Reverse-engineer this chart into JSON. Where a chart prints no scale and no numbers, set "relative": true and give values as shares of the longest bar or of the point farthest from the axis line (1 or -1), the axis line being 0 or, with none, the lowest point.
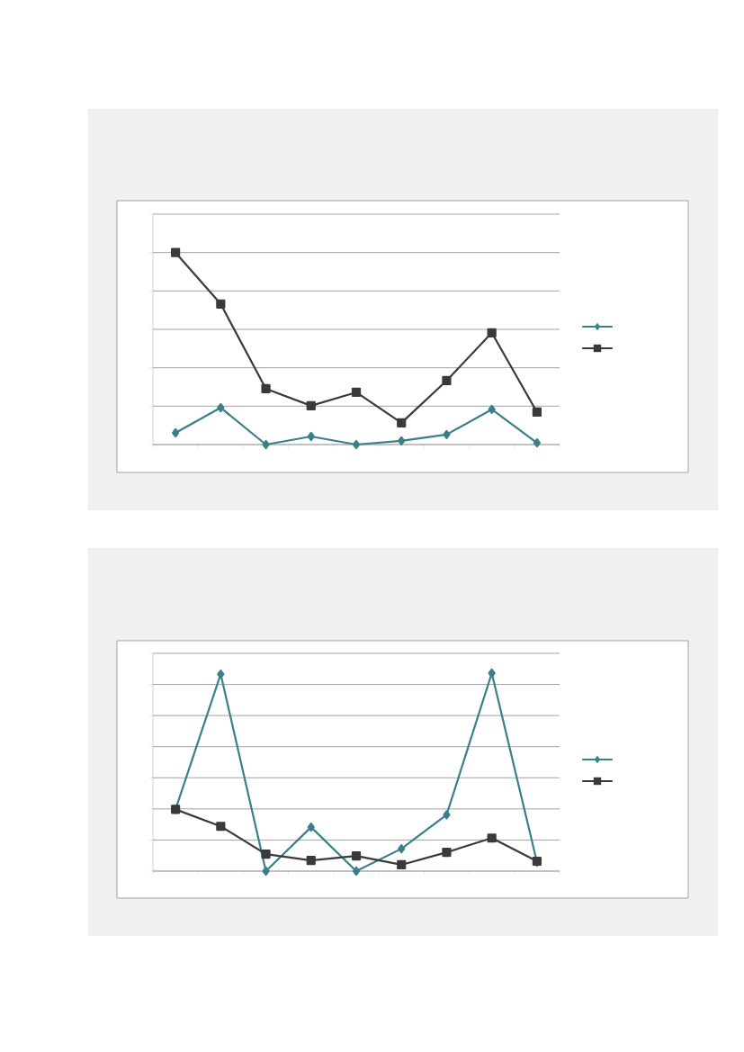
{
  "chart_data": [
    {
      "type": "line",
      "relative": true,
      "grid": "y",
      "categories": [
        null,
        null,
        null,
        null,
        null,
        null,
        null,
        null,
        null
      ],
      "series": [
        {
          "color": "#3a7f8a",
          "marker": "diamond",
          "values": [
            0.061,
            0.192,
            0,
            0.042,
            0,
            0.019,
            0.052,
            0.183,
            0.009
          ]
        },
        {
          "color": "#3a3a3a",
          "marker": "square",
          "values": [
            1,
            0.732,
            0.291,
            0.202,
            0.272,
            0.113,
            0.333,
            0.582,
            0.169
          ]
        }
      ]
    },
    {
      "type": "line",
      "relative": true,
      "grid": "y",
      "categories": [
        null,
        null,
        null,
        null,
        null,
        null,
        null,
        null,
        null
      ],
      "series": [
        {
          "color": "#3a7f8a",
          "marker": "diamond",
          "values": [
            0.312,
            0.995,
            0,
            0.222,
            0,
            0.113,
            0.285,
            1,
            0.045
          ]
        },
        {
          "color": "#3a3a3a",
          "marker": "square",
          "values": [
            0.312,
            0.226,
            0.086,
            0.054,
            0.077,
            0.032,
            0.095,
            0.167,
            0.05
          ]
        }
      ]
    }
  ]
}
